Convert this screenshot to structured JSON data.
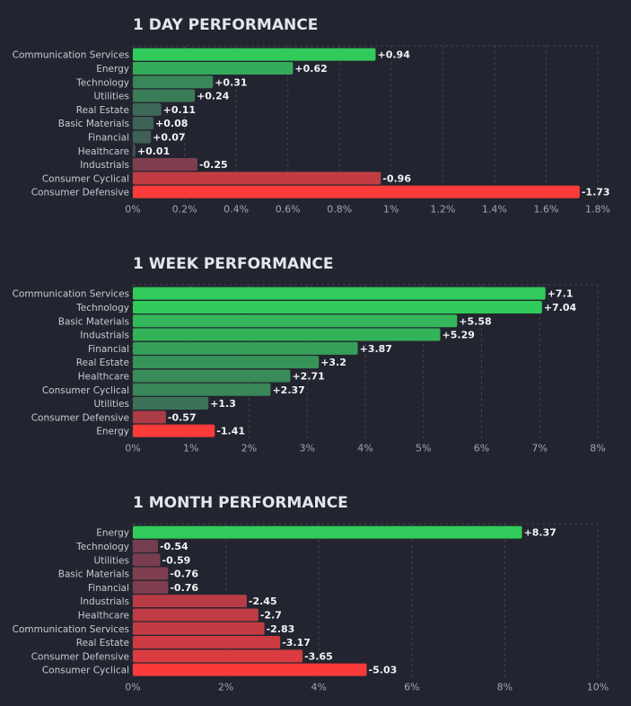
{
  "chart_data": [
    {
      "type": "bar",
      "orientation": "horizontal",
      "title": "1 DAY PERFORMANCE",
      "categories": [
        "Communication Services",
        "Energy",
        "Technology",
        "Utilities",
        "Real Estate",
        "Basic Materials",
        "Financial",
        "Healthcare",
        "Industrials",
        "Consumer Cyclical",
        "Consumer Defensive"
      ],
      "values": [
        0.94,
        0.62,
        0.31,
        0.24,
        0.11,
        0.08,
        0.07,
        0.01,
        -0.25,
        -0.96,
        -1.73
      ],
      "value_labels": [
        "+0.94",
        "+0.62",
        "+0.31",
        "+0.24",
        "+0.11",
        "+0.08",
        "+0.07",
        "+0.01",
        "-0.25",
        "-0.96",
        "-1.73"
      ],
      "xlim": [
        0,
        1.8
      ],
      "xticks": [
        "0%",
        "0.2%",
        "0.4%",
        "0.6%",
        "0.8%",
        "1%",
        "1.2%",
        "1.4%",
        "1.6%",
        "1.8%"
      ],
      "bar_length": "absolute value",
      "xlabel": "",
      "ylabel": ""
    },
    {
      "type": "bar",
      "orientation": "horizontal",
      "title": "1 WEEK PERFORMANCE",
      "categories": [
        "Communication Services",
        "Technology",
        "Basic Materials",
        "Industrials",
        "Financial",
        "Real Estate",
        "Healthcare",
        "Consumer Cyclical",
        "Utilities",
        "Consumer Defensive",
        "Energy"
      ],
      "values": [
        7.1,
        7.04,
        5.58,
        5.29,
        3.87,
        3.2,
        2.71,
        2.37,
        1.3,
        -0.57,
        -1.41
      ],
      "value_labels": [
        "+7.1",
        "+7.04",
        "+5.58",
        "+5.29",
        "+3.87",
        "+3.2",
        "+2.71",
        "+2.37",
        "+1.3",
        "-0.57",
        "-1.41"
      ],
      "xlim": [
        0,
        8
      ],
      "xticks": [
        "0%",
        "1%",
        "2%",
        "3%",
        "4%",
        "5%",
        "6%",
        "7%",
        "8%"
      ],
      "bar_length": "absolute value",
      "xlabel": "",
      "ylabel": ""
    },
    {
      "type": "bar",
      "orientation": "horizontal",
      "title": "1 MONTH PERFORMANCE",
      "categories": [
        "Energy",
        "Technology",
        "Utilities",
        "Basic Materials",
        "Financial",
        "Industrials",
        "Healthcare",
        "Communication Services",
        "Real Estate",
        "Consumer Defensive",
        "Consumer Cyclical"
      ],
      "values": [
        8.37,
        -0.54,
        -0.59,
        -0.76,
        -0.76,
        -2.45,
        -2.7,
        -2.83,
        -3.17,
        -3.65,
        -5.03
      ],
      "value_labels": [
        "+8.37",
        "-0.54",
        "-0.59",
        "-0.76",
        "-0.76",
        "-2.45",
        "-2.7",
        "-2.83",
        "-3.17",
        "-3.65",
        "-5.03"
      ],
      "xlim": [
        0,
        10
      ],
      "xticks": [
        "0%",
        "2%",
        "4%",
        "6%",
        "8%",
        "10%"
      ],
      "bar_length": "absolute value",
      "xlabel": "",
      "ylabel": ""
    }
  ]
}
